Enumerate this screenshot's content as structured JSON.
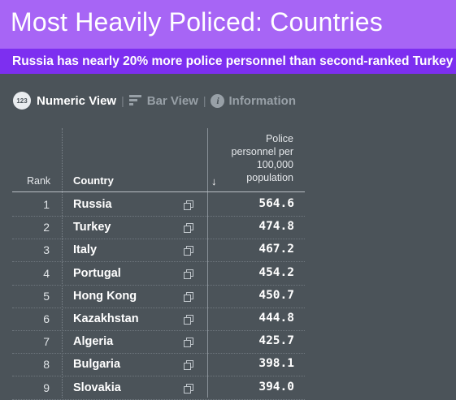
{
  "header": {
    "title": "Most Heavily Policed: Countries",
    "subtitle": "Russia has nearly 20% more police personnel than second-ranked Turkey"
  },
  "views": {
    "badge": "123",
    "numeric": "Numeric View",
    "bar": "Bar View",
    "info": "Information",
    "separator": "|"
  },
  "table": {
    "columns": {
      "rank": "Rank",
      "country": "Country",
      "metric_lines": [
        "Police",
        "personnel per",
        "100,000",
        "population"
      ],
      "sort_icon": "arrow-down-icon"
    },
    "rows": [
      {
        "rank": "1",
        "country": "Russia",
        "value": "564.6"
      },
      {
        "rank": "2",
        "country": "Turkey",
        "value": "474.8"
      },
      {
        "rank": "3",
        "country": "Italy",
        "value": "467.2"
      },
      {
        "rank": "4",
        "country": "Portugal",
        "value": "454.2"
      },
      {
        "rank": "5",
        "country": "Hong Kong",
        "value": "450.7"
      },
      {
        "rank": "6",
        "country": "Kazakhstan",
        "value": "444.8"
      },
      {
        "rank": "7",
        "country": "Algeria",
        "value": "425.7"
      },
      {
        "rank": "8",
        "country": "Bulgaria",
        "value": "398.1"
      },
      {
        "rank": "9",
        "country": "Slovakia",
        "value": "394.0"
      }
    ]
  },
  "colors": {
    "header_bg": "#a765f5",
    "subtitle_bg": "#7d2ff0",
    "page_bg": "#4b5359"
  }
}
